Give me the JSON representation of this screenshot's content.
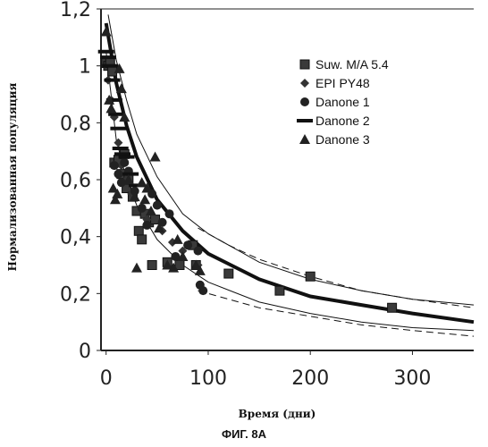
{
  "figure_caption": "ФИГ. 8А",
  "chart_data": {
    "type": "scatter",
    "xlabel": "Время (дни)",
    "ylabel": "Нормализованная популяция",
    "xlim": [
      -5,
      360
    ],
    "ylim": [
      0,
      1.2
    ],
    "x_ticks": [
      0,
      100,
      200,
      300
    ],
    "x_tick_labels": [
      "0",
      "100",
      "200",
      "300"
    ],
    "y_ticks": [
      0,
      0.2,
      0.4,
      0.6,
      0.8,
      1.0,
      1.2
    ],
    "y_tick_labels": [
      "0",
      "0,2",
      "0,4",
      "0,6",
      "0,8",
      "1",
      "1,2"
    ],
    "grid": false,
    "legend_position": "right",
    "series": [
      {
        "name": "Suw. M/A 5.4",
        "marker": "square",
        "points": [
          [
            0,
            1.01
          ],
          [
            2,
            1.0
          ],
          [
            4,
            1.01
          ],
          [
            6,
            0.98
          ],
          [
            8,
            0.66
          ],
          [
            12,
            0.67
          ],
          [
            15,
            0.62
          ],
          [
            18,
            0.69
          ],
          [
            20,
            0.57
          ],
          [
            22,
            0.6
          ],
          [
            26,
            0.54
          ],
          [
            30,
            0.49
          ],
          [
            32,
            0.42
          ],
          [
            35,
            0.39
          ],
          [
            38,
            0.48
          ],
          [
            42,
            0.45
          ],
          [
            45,
            0.3
          ],
          [
            48,
            0.46
          ],
          [
            60,
            0.31
          ],
          [
            72,
            0.3
          ],
          [
            85,
            0.37
          ],
          [
            88,
            0.3
          ],
          [
            120,
            0.27
          ],
          [
            170,
            0.21
          ],
          [
            200,
            0.26
          ],
          [
            280,
            0.15
          ]
        ]
      },
      {
        "name": "EPI PY48",
        "marker": "diamond",
        "points": [
          [
            2,
            0.95
          ],
          [
            5,
            0.88
          ],
          [
            8,
            0.82
          ],
          [
            12,
            0.73
          ],
          [
            15,
            0.65
          ],
          [
            20,
            0.6
          ],
          [
            25,
            0.55
          ],
          [
            35,
            0.5
          ],
          [
            40,
            0.46
          ],
          [
            55,
            0.42
          ],
          [
            65,
            0.38
          ],
          [
            75,
            0.35
          ],
          [
            90,
            0.3
          ]
        ]
      },
      {
        "name": "Danone 1",
        "marker": "circle",
        "points": [
          [
            8,
            0.65
          ],
          [
            12,
            0.62
          ],
          [
            15,
            0.59
          ],
          [
            18,
            0.66
          ],
          [
            22,
            0.63
          ],
          [
            28,
            0.56
          ],
          [
            35,
            0.5
          ],
          [
            40,
            0.44
          ],
          [
            45,
            0.55
          ],
          [
            50,
            0.51
          ],
          [
            55,
            0.45
          ],
          [
            62,
            0.48
          ],
          [
            68,
            0.33
          ],
          [
            80,
            0.37
          ],
          [
            90,
            0.35
          ],
          [
            92,
            0.23
          ],
          [
            95,
            0.21
          ]
        ]
      },
      {
        "name": "Danone 2",
        "marker": "dash",
        "points": [
          [
            0,
            1.05
          ],
          [
            2,
            1.03
          ],
          [
            4,
            1.0
          ],
          [
            6,
            0.95
          ],
          [
            8,
            0.88
          ],
          [
            10,
            0.83
          ],
          [
            12,
            0.78
          ],
          [
            14,
            0.71
          ],
          [
            16,
            0.69
          ],
          [
            20,
            0.68
          ],
          [
            24,
            0.62
          ],
          [
            30,
            0.58
          ]
        ]
      },
      {
        "name": "Danone 3",
        "marker": "triangle",
        "points": [
          [
            0,
            1.12
          ],
          [
            3,
            0.88
          ],
          [
            5,
            0.85
          ],
          [
            7,
            0.57
          ],
          [
            9,
            0.53
          ],
          [
            11,
            0.55
          ],
          [
            13,
            0.99
          ],
          [
            15,
            0.92
          ],
          [
            18,
            0.82
          ],
          [
            22,
            0.6
          ],
          [
            28,
            0.54
          ],
          [
            30,
            0.29
          ],
          [
            35,
            0.59
          ],
          [
            38,
            0.53
          ],
          [
            40,
            0.57
          ],
          [
            44,
            0.49
          ],
          [
            48,
            0.68
          ],
          [
            52,
            0.43
          ],
          [
            60,
            0.3
          ],
          [
            66,
            0.29
          ],
          [
            70,
            0.39
          ],
          [
            75,
            0.33
          ],
          [
            88,
            0.3
          ],
          [
            92,
            0.28
          ]
        ]
      }
    ],
    "curves": [
      {
        "style": "solid-thick",
        "points": [
          [
            0,
            1.15
          ],
          [
            10,
            0.94
          ],
          [
            20,
            0.79
          ],
          [
            30,
            0.68
          ],
          [
            50,
            0.53
          ],
          [
            75,
            0.42
          ],
          [
            100,
            0.34
          ],
          [
            150,
            0.25
          ],
          [
            200,
            0.19
          ],
          [
            250,
            0.16
          ],
          [
            300,
            0.13
          ],
          [
            360,
            0.1
          ]
        ]
      },
      {
        "style": "solid-thin",
        "points": [
          [
            2,
            1.18
          ],
          [
            10,
            1.02
          ],
          [
            20,
            0.88
          ],
          [
            30,
            0.76
          ],
          [
            50,
            0.61
          ],
          [
            75,
            0.48
          ],
          [
            100,
            0.41
          ],
          [
            150,
            0.31
          ],
          [
            200,
            0.25
          ],
          [
            250,
            0.21
          ],
          [
            300,
            0.18
          ],
          [
            360,
            0.16
          ]
        ]
      },
      {
        "style": "solid-thin",
        "points": [
          [
            0,
            1.05
          ],
          [
            10,
            0.74
          ],
          [
            20,
            0.6
          ],
          [
            30,
            0.51
          ],
          [
            50,
            0.39
          ],
          [
            75,
            0.3
          ],
          [
            100,
            0.24
          ],
          [
            150,
            0.17
          ],
          [
            200,
            0.13
          ],
          [
            250,
            0.1
          ],
          [
            300,
            0.08
          ],
          [
            360,
            0.07
          ]
        ]
      },
      {
        "style": "dashed",
        "points": [
          [
            90,
            0.43
          ],
          [
            120,
            0.37
          ],
          [
            150,
            0.32
          ],
          [
            200,
            0.26
          ],
          [
            250,
            0.21
          ],
          [
            300,
            0.18
          ],
          [
            360,
            0.15
          ]
        ]
      },
      {
        "style": "dashed",
        "points": [
          [
            90,
            0.21
          ],
          [
            120,
            0.18
          ],
          [
            150,
            0.15
          ],
          [
            200,
            0.12
          ],
          [
            250,
            0.09
          ],
          [
            300,
            0.07
          ],
          [
            360,
            0.05
          ]
        ]
      }
    ]
  }
}
